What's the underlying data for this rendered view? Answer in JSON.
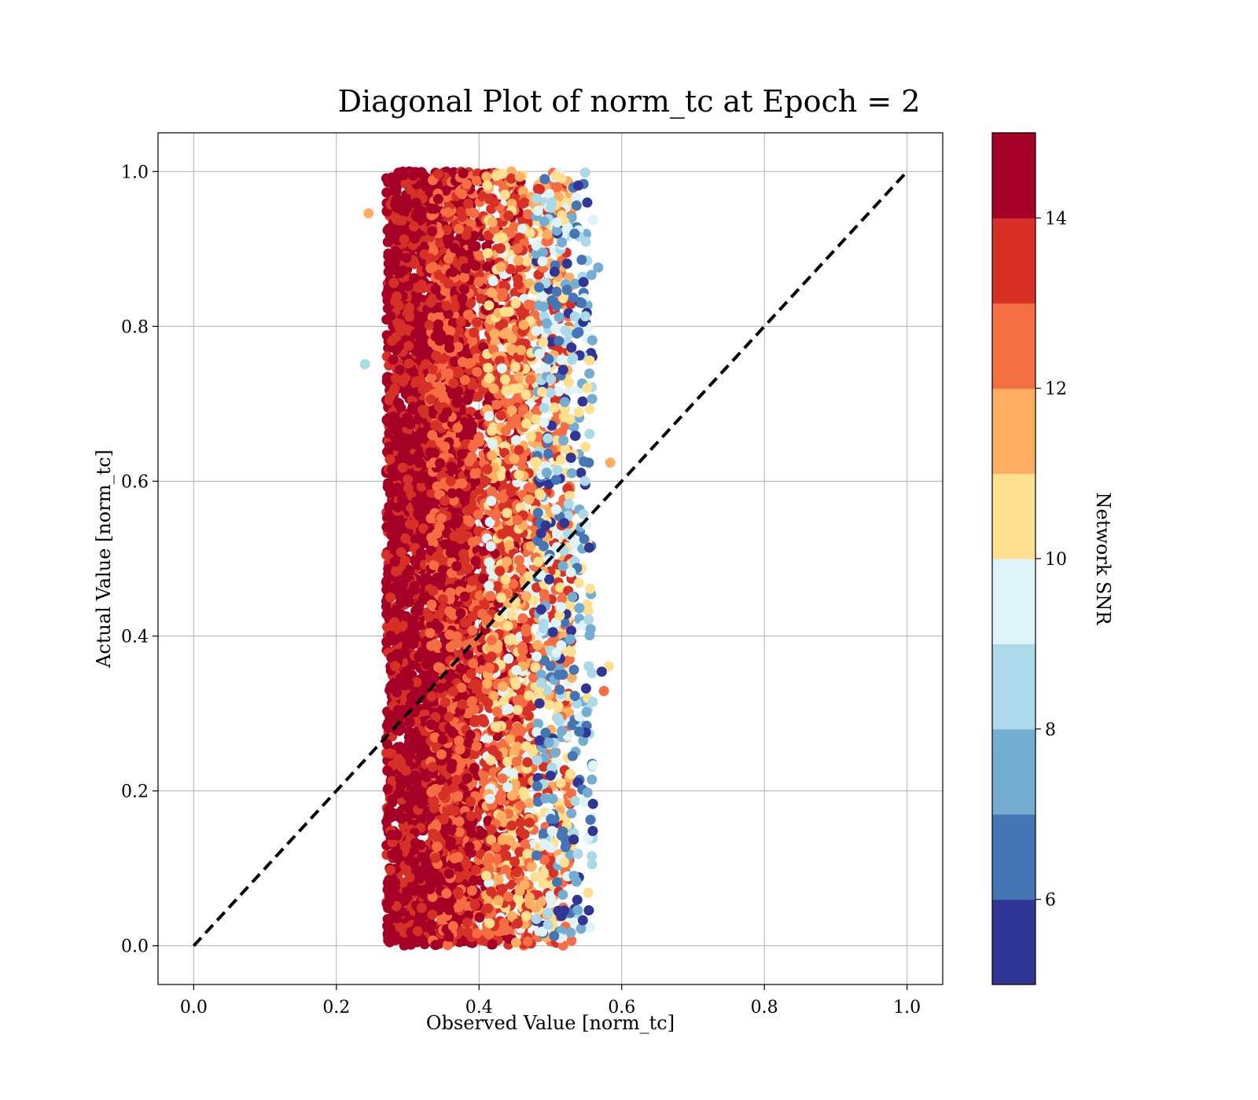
{
  "chart_data": {
    "type": "scatter",
    "title": "Diagonal Plot of norm_tc at Epoch = 2",
    "xlabel": "Observed Value [norm_tc]",
    "ylabel": "Actual Value [norm_tc]",
    "xlim": [
      -0.05,
      1.05
    ],
    "ylim": [
      -0.05,
      1.05
    ],
    "x_ticks": [
      "0.0",
      "0.2",
      "0.4",
      "0.6",
      "0.8",
      "1.0"
    ],
    "y_ticks": [
      "0.0",
      "0.2",
      "0.4",
      "0.6",
      "0.8",
      "1.0"
    ],
    "grid": true,
    "reference_line": {
      "style": "dashed",
      "color": "#000000",
      "from": [
        0.0,
        0.0
      ],
      "to": [
        1.0,
        1.0
      ]
    },
    "point_cloud": {
      "x_range": [
        0.24,
        0.585
      ],
      "y_range": [
        0.0,
        1.0
      ],
      "color_by": "Network SNR",
      "bands": [
        {
          "x_range": [
            0.27,
            0.39
          ],
          "snr_range": [
            13.6,
            15.0
          ]
        },
        {
          "x_range": [
            0.33,
            0.47
          ],
          "snr_range": [
            12.0,
            15.0
          ]
        },
        {
          "x_range": [
            0.41,
            0.53
          ],
          "snr_range": [
            9.5,
            14.0
          ]
        },
        {
          "x_range": [
            0.48,
            0.56
          ],
          "snr_range": [
            5.0,
            10.5
          ]
        }
      ],
      "outliers": [
        {
          "x": 0.584,
          "y": 0.624,
          "snr": 11.2
        },
        {
          "x": 0.567,
          "y": 0.876,
          "snr": 7.6
        },
        {
          "x": 0.575,
          "y": 0.329,
          "snr": 12.6
        },
        {
          "x": 0.582,
          "y": 0.361,
          "snr": 10.6
        },
        {
          "x": 0.572,
          "y": 0.354,
          "snr": 5.6
        },
        {
          "x": 0.555,
          "y": 0.401,
          "snr": 7.6
        },
        {
          "x": 0.24,
          "y": 0.751,
          "snr": 8.6
        },
        {
          "x": 0.245,
          "y": 0.946,
          "snr": 11.4
        }
      ]
    },
    "colorbar": {
      "label": "Network SNR",
      "range": [
        5,
        15
      ],
      "ticks": [
        "6",
        "8",
        "10",
        "12",
        "14"
      ],
      "colors": [
        "#313695",
        "#4575b4",
        "#74add1",
        "#abd9e9",
        "#e0f3f8",
        "#fee090",
        "#fdae61",
        "#f46d43",
        "#d73027",
        "#a50026"
      ]
    }
  }
}
